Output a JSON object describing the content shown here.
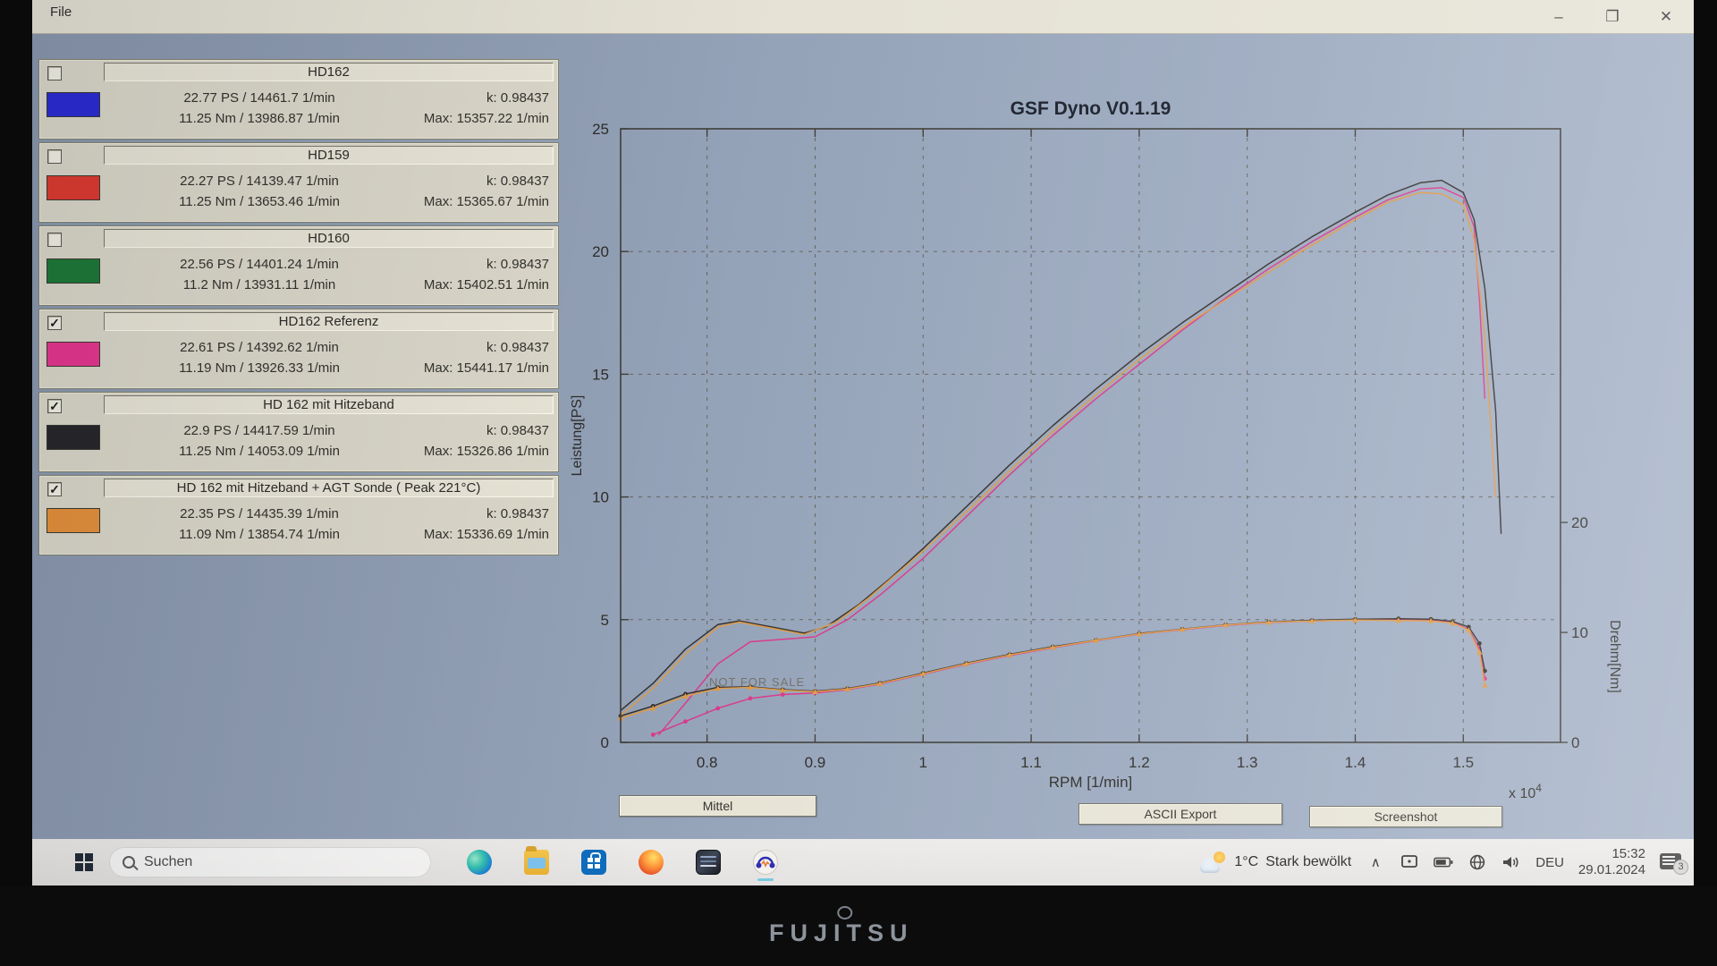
{
  "window": {
    "menu_file": "File",
    "controls": {
      "minimize": "–",
      "restore": "❐",
      "close": "✕"
    }
  },
  "ui": {
    "check_glyph": "✓"
  },
  "datasets": [
    {
      "title": "HD162",
      "checked": false,
      "color": "#2b2bd6",
      "line1": "22.77 PS / 14461.7 1/min",
      "line2": "11.25 Nm / 13986.87 1/min",
      "k": "k: 0.98437",
      "max": "Max: 15357.22 1/min"
    },
    {
      "title": "HD159",
      "checked": false,
      "color": "#df3a30",
      "line1": "22.27 PS / 14139.47 1/min",
      "line2": "11.25 Nm / 13653.46 1/min",
      "k": "k: 0.98437",
      "max": "Max: 15365.67 1/min"
    },
    {
      "title": "HD160",
      "checked": false,
      "color": "#1e7a39",
      "line1": "22.56 PS / 14401.24 1/min",
      "line2": "11.2 Nm / 13931.11 1/min",
      "k": "k: 0.98437",
      "max": "Max: 15402.51 1/min"
    },
    {
      "title": "HD162 Referenz",
      "checked": true,
      "color": "#e73790",
      "line1": "22.61 PS / 14392.62 1/min",
      "line2": "11.19 Nm / 13926.33 1/min",
      "k": "k: 0.98437",
      "max": "Max: 15441.17 1/min"
    },
    {
      "title": "HD 162 mit Hitzeband",
      "checked": true,
      "color": "#26262b",
      "line1": "22.9 PS / 14417.59 1/min",
      "line2": "11.25 Nm / 14053.09 1/min",
      "k": "k: 0.98437",
      "max": "Max: 15326.86 1/min"
    },
    {
      "title": "HD 162 mit Hitzeband + AGT Sonde ( Peak 221°C)",
      "checked": true,
      "color": "#e6923c",
      "line1": "22.35 PS / 14435.39 1/min",
      "line2": "11.09 Nm / 13854.74 1/min",
      "k": "k: 0.98437",
      "max": "Max: 15336.69 1/min"
    }
  ],
  "buttons": {
    "mittel": "Mittel",
    "ascii": "ASCII Export",
    "screenshot": "Screenshot"
  },
  "chart_data": {
    "type": "line",
    "title": "GSF Dyno V0.1.19",
    "xlabel": "RPM [1/min]",
    "multiplier_base": "x 10",
    "multiplier_exp": "4",
    "ylabel_left": "Leistung[PS]",
    "ylabel_right": "Drehm[Nm]",
    "watermark": "NOT FOR SALE",
    "grid": "dashed",
    "xlim": [
      0.72,
      1.59
    ],
    "ylim_left": [
      0,
      25
    ],
    "ylim_right": [
      0,
      55.8
    ],
    "xticks": [
      "0.8",
      "0.9",
      "1",
      "1.1",
      "1.2",
      "1.3",
      "1.4",
      "1.5"
    ],
    "yticks_left": [
      "0",
      "5",
      "10",
      "15",
      "20",
      "25"
    ],
    "yticks_right": [
      {
        "label": "20",
        "value": 20
      },
      {
        "label": "10",
        "value": 10
      },
      {
        "label": "0",
        "value": 0
      }
    ],
    "series": [
      {
        "name": "HD162 Referenz",
        "color": "#d93a8c",
        "marker": "dot",
        "power": [
          [
            0.755,
            0.3
          ],
          [
            0.78,
            1.6
          ],
          [
            0.81,
            3.2
          ],
          [
            0.84,
            4.1
          ],
          [
            0.87,
            4.2
          ],
          [
            0.9,
            4.3
          ],
          [
            0.93,
            5.0
          ],
          [
            0.96,
            6.0
          ],
          [
            1.0,
            7.5
          ],
          [
            1.04,
            9.2
          ],
          [
            1.08,
            10.9
          ],
          [
            1.12,
            12.5
          ],
          [
            1.16,
            14.0
          ],
          [
            1.2,
            15.4
          ],
          [
            1.24,
            16.8
          ],
          [
            1.28,
            18.1
          ],
          [
            1.32,
            19.3
          ],
          [
            1.36,
            20.4
          ],
          [
            1.4,
            21.4
          ],
          [
            1.43,
            22.1
          ],
          [
            1.46,
            22.55
          ],
          [
            1.48,
            22.6
          ],
          [
            1.5,
            22.2
          ],
          [
            1.51,
            21.0
          ],
          [
            1.515,
            18.0
          ],
          [
            1.52,
            14.0
          ]
        ],
        "torque": [
          [
            0.75,
            0.7
          ],
          [
            0.78,
            1.9
          ],
          [
            0.81,
            3.1
          ],
          [
            0.84,
            4.0
          ],
          [
            0.87,
            4.35
          ],
          [
            0.9,
            4.5
          ],
          [
            0.93,
            4.8
          ],
          [
            0.96,
            5.3
          ],
          [
            1.0,
            6.2
          ],
          [
            1.04,
            7.1
          ],
          [
            1.08,
            7.9
          ],
          [
            1.12,
            8.6
          ],
          [
            1.16,
            9.25
          ],
          [
            1.2,
            9.85
          ],
          [
            1.24,
            10.25
          ],
          [
            1.28,
            10.65
          ],
          [
            1.32,
            10.9
          ],
          [
            1.36,
            11.05
          ],
          [
            1.4,
            11.15
          ],
          [
            1.44,
            11.19
          ],
          [
            1.47,
            11.15
          ],
          [
            1.49,
            10.9
          ],
          [
            1.505,
            10.3
          ],
          [
            1.515,
            8.5
          ],
          [
            1.52,
            5.8
          ]
        ]
      },
      {
        "name": "HD 162 mit Hitzeband",
        "color": "#35322f",
        "marker": "dot",
        "power": [
          [
            0.72,
            1.3
          ],
          [
            0.75,
            2.4
          ],
          [
            0.78,
            3.8
          ],
          [
            0.81,
            4.8
          ],
          [
            0.83,
            4.95
          ],
          [
            0.86,
            4.7
          ],
          [
            0.89,
            4.45
          ],
          [
            0.91,
            4.7
          ],
          [
            0.94,
            5.6
          ],
          [
            0.97,
            6.7
          ],
          [
            1.0,
            7.9
          ],
          [
            1.04,
            9.6
          ],
          [
            1.08,
            11.3
          ],
          [
            1.12,
            12.9
          ],
          [
            1.16,
            14.4
          ],
          [
            1.2,
            15.8
          ],
          [
            1.24,
            17.1
          ],
          [
            1.28,
            18.3
          ],
          [
            1.32,
            19.5
          ],
          [
            1.36,
            20.6
          ],
          [
            1.4,
            21.6
          ],
          [
            1.43,
            22.3
          ],
          [
            1.46,
            22.8
          ],
          [
            1.48,
            22.9
          ],
          [
            1.5,
            22.4
          ],
          [
            1.51,
            21.3
          ],
          [
            1.52,
            18.5
          ],
          [
            1.53,
            13.5
          ],
          [
            1.535,
            8.5
          ]
        ],
        "torque": [
          [
            0.72,
            2.4
          ],
          [
            0.75,
            3.3
          ],
          [
            0.78,
            4.4
          ],
          [
            0.81,
            5.0
          ],
          [
            0.84,
            5.05
          ],
          [
            0.87,
            4.8
          ],
          [
            0.9,
            4.65
          ],
          [
            0.93,
            4.9
          ],
          [
            0.96,
            5.4
          ],
          [
            1.0,
            6.3
          ],
          [
            1.04,
            7.2
          ],
          [
            1.08,
            8.0
          ],
          [
            1.12,
            8.7
          ],
          [
            1.16,
            9.3
          ],
          [
            1.2,
            9.9
          ],
          [
            1.24,
            10.3
          ],
          [
            1.28,
            10.7
          ],
          [
            1.32,
            10.95
          ],
          [
            1.36,
            11.1
          ],
          [
            1.4,
            11.2
          ],
          [
            1.44,
            11.25
          ],
          [
            1.47,
            11.2
          ],
          [
            1.49,
            11.0
          ],
          [
            1.505,
            10.5
          ],
          [
            1.515,
            9.0
          ],
          [
            1.52,
            6.5
          ]
        ]
      },
      {
        "name": "HD 162 mit Hitzeband + AGT Sonde ( Peak 221°C)",
        "color": "#de9a46",
        "marker": "triangle",
        "power": [
          [
            0.72,
            1.1
          ],
          [
            0.75,
            2.2
          ],
          [
            0.78,
            3.6
          ],
          [
            0.81,
            4.7
          ],
          [
            0.83,
            4.9
          ],
          [
            0.86,
            4.65
          ],
          [
            0.89,
            4.4
          ],
          [
            0.92,
            4.9
          ],
          [
            0.95,
            5.9
          ],
          [
            1.0,
            7.8
          ],
          [
            1.05,
            9.8
          ],
          [
            1.1,
            11.9
          ],
          [
            1.15,
            13.8
          ],
          [
            1.2,
            15.6
          ],
          [
            1.25,
            17.2
          ],
          [
            1.3,
            18.6
          ],
          [
            1.35,
            20.0
          ],
          [
            1.4,
            21.3
          ],
          [
            1.43,
            22.0
          ],
          [
            1.46,
            22.4
          ],
          [
            1.48,
            22.35
          ],
          [
            1.5,
            21.9
          ],
          [
            1.51,
            20.5
          ],
          [
            1.52,
            16.5
          ],
          [
            1.53,
            10.0
          ]
        ],
        "torque": [
          [
            0.72,
            2.2
          ],
          [
            0.75,
            3.1
          ],
          [
            0.78,
            4.2
          ],
          [
            0.81,
            4.9
          ],
          [
            0.84,
            5.0
          ],
          [
            0.87,
            4.75
          ],
          [
            0.9,
            4.6
          ],
          [
            0.93,
            4.85
          ],
          [
            0.96,
            5.35
          ],
          [
            1.0,
            6.25
          ],
          [
            1.04,
            7.15
          ],
          [
            1.08,
            7.95
          ],
          [
            1.12,
            8.65
          ],
          [
            1.16,
            9.28
          ],
          [
            1.2,
            9.87
          ],
          [
            1.24,
            10.28
          ],
          [
            1.28,
            10.68
          ],
          [
            1.32,
            10.92
          ],
          [
            1.36,
            11.05
          ],
          [
            1.4,
            11.12
          ],
          [
            1.44,
            11.09
          ],
          [
            1.47,
            11.05
          ],
          [
            1.49,
            10.85
          ],
          [
            1.505,
            10.2
          ],
          [
            1.515,
            8.2
          ],
          [
            1.52,
            5.2
          ]
        ]
      }
    ]
  },
  "taskbar": {
    "search_placeholder": "Suchen",
    "weather_temp": "1°C",
    "weather_desc": "Stark bewölkt",
    "chevron": "∧",
    "lang": "DEU",
    "time": "15:32",
    "date": "29.01.2024",
    "badge": "3"
  },
  "bezel": {
    "brand": "FUJITSU"
  }
}
